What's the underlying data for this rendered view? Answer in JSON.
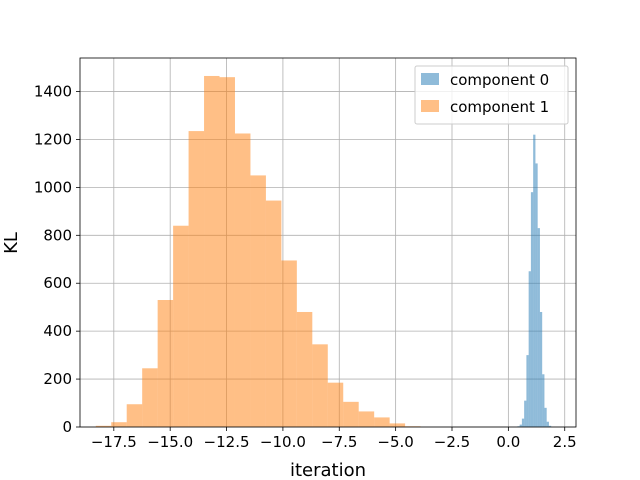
{
  "chart_data": {
    "type": "bar",
    "title": "",
    "xlabel": "iteration",
    "ylabel": "KL",
    "xlim": [
      -19.0,
      3.0
    ],
    "ylim": [
      0,
      1540
    ],
    "grid": true,
    "legend_position": "top-right",
    "x_ticks": [
      {
        "value": -17.5,
        "label": "−17.5"
      },
      {
        "value": -15.0,
        "label": "−15.0"
      },
      {
        "value": -12.5,
        "label": "−12.5"
      },
      {
        "value": -10.0,
        "label": "−10.0"
      },
      {
        "value": -7.5,
        "label": "−7.5"
      },
      {
        "value": -5.0,
        "label": "−5.0"
      },
      {
        "value": -2.5,
        "label": "−2.5"
      },
      {
        "value": 0.0,
        "label": "0.0"
      },
      {
        "value": 2.5,
        "label": "2.5"
      }
    ],
    "y_ticks": [
      {
        "value": 0,
        "label": "0"
      },
      {
        "value": 200,
        "label": "200"
      },
      {
        "value": 400,
        "label": "400"
      },
      {
        "value": 600,
        "label": "600"
      },
      {
        "value": 800,
        "label": "800"
      },
      {
        "value": 1000,
        "label": "1000"
      },
      {
        "value": 1200,
        "label": "1200"
      },
      {
        "value": 1400,
        "label": "1400"
      }
    ],
    "series": [
      {
        "name": "component 0",
        "color": "#1f77b4",
        "alpha": 0.5,
        "bin_width": 0.1,
        "bin_edges_start": 0.4,
        "counts": [
          3,
          10,
          35,
          110,
          300,
          650,
          980,
          1220,
          1100,
          830,
          480,
          220,
          80,
          22,
          5
        ]
      },
      {
        "name": "component 1",
        "color": "#ff7f0e",
        "alpha": 0.5,
        "bin_width": 0.686,
        "bin_edges_start": -18.3,
        "counts": [
          5,
          20,
          95,
          245,
          530,
          840,
          1235,
          1465,
          1460,
          1225,
          1050,
          945,
          695,
          480,
          345,
          185,
          105,
          65,
          40,
          15,
          3
        ]
      }
    ]
  }
}
